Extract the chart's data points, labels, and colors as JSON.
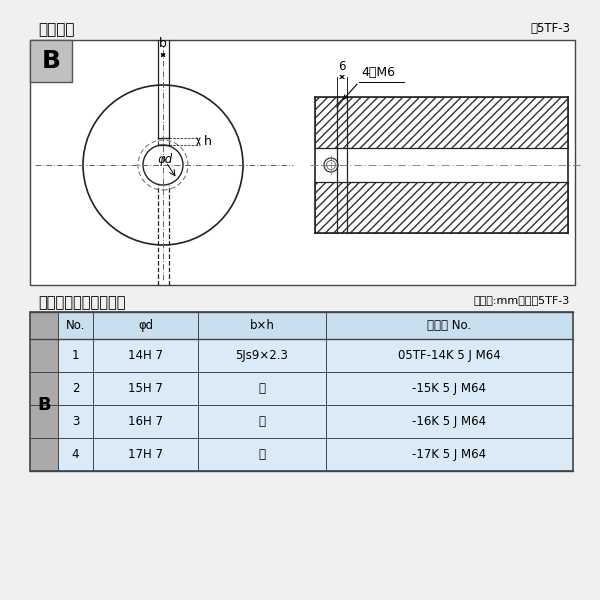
{
  "title_left": "軸穴形状",
  "title_right": "図5TF-3",
  "table_title_left": "軸穴形状コードー覧表",
  "table_title_right": "（単位:mm）　表5TF-3",
  "bg_color": "#f0f0f0",
  "drawing_bg": "#ffffff",
  "table_header": [
    "No.",
    "φd",
    "b×h",
    "コード No."
  ],
  "table_rows": [
    [
      "1",
      "14H 7",
      "5Js9×2.3",
      "05TF-14K 5 J M64"
    ],
    [
      "2",
      "15H 7",
      "〃",
      "-15K 5 J M64"
    ],
    [
      "3",
      "16H 7",
      "〃",
      "-16K 5 J M64"
    ],
    [
      "4",
      "17H 7",
      "〃",
      "-17K 5 J M64"
    ]
  ]
}
